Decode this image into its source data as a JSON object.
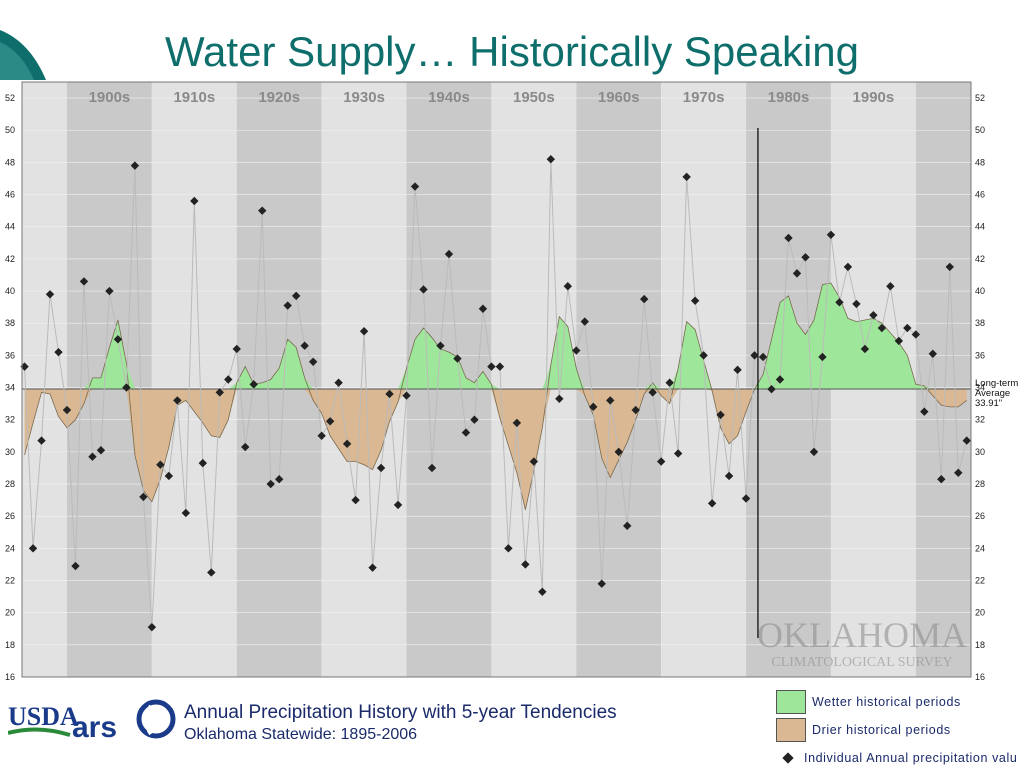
{
  "slide": {
    "title": "Water Supply… Historically Speaking"
  },
  "footer": {
    "title": "Annual Precipitation History with 5-year Tendencies",
    "subtitle": "Oklahoma Statewide: 1895-2006",
    "usda_logo_text": "USDA",
    "ars_logo_text": "ars"
  },
  "watermark": {
    "line1": "OKLAHOMA",
    "line2": "CLIMATOLOGICAL SURVEY"
  },
  "legend": {
    "wetter": "Wetter historical periods",
    "drier": "Drier historical periods",
    "points": "Individual Annual precipitation valu"
  },
  "colors": {
    "title": "#0e6e6b",
    "wet": "#9ee69a",
    "dry": "#d9b893",
    "band_dark": "#c9c9c9",
    "band_light": "#e2e2e2"
  },
  "chart_data": {
    "type": "area",
    "decades": [
      "1900s",
      "1910s",
      "1920s",
      "1930s",
      "1940s",
      "1950s",
      "1960s",
      "1970s",
      "1980s",
      "1990s"
    ],
    "ylim": [
      16,
      53
    ],
    "yticks": [
      16,
      18,
      20,
      22,
      24,
      26,
      28,
      30,
      32,
      34,
      36,
      38,
      40,
      42,
      44,
      46,
      48,
      50,
      52
    ],
    "xlim": [
      1894.7,
      2006.5
    ],
    "average_label": [
      "Long-term",
      "Average",
      "33.91\""
    ],
    "average": 33.91,
    "vertical_marker_year": 1981.4,
    "series": [
      {
        "name": "Individual Annual precipitation values",
        "x": [
          1895,
          1896,
          1897,
          1898,
          1899,
          1900,
          1901,
          1902,
          1903,
          1904,
          1905,
          1906,
          1907,
          1908,
          1909,
          1910,
          1911,
          1912,
          1913,
          1914,
          1915,
          1916,
          1917,
          1918,
          1919,
          1920,
          1921,
          1922,
          1923,
          1924,
          1925,
          1926,
          1927,
          1928,
          1929,
          1930,
          1931,
          1932,
          1933,
          1934,
          1935,
          1936,
          1937,
          1938,
          1939,
          1940,
          1941,
          1942,
          1943,
          1944,
          1945,
          1946,
          1947,
          1948,
          1949,
          1950,
          1951,
          1952,
          1953,
          1954,
          1955,
          1956,
          1957,
          1958,
          1959,
          1960,
          1961,
          1962,
          1963,
          1964,
          1965,
          1966,
          1967,
          1968,
          1969,
          1970,
          1971,
          1972,
          1973,
          1974,
          1975,
          1976,
          1977,
          1978,
          1979,
          1980,
          1981,
          1982,
          1983,
          1984,
          1985,
          1986,
          1987,
          1988,
          1989,
          1990,
          1991,
          1992,
          1993,
          1994,
          1995,
          1996,
          1997,
          1998,
          1999,
          2000,
          2001,
          2002,
          2003,
          2004,
          2005,
          2006
        ],
        "y": [
          35.3,
          24.0,
          30.7,
          39.8,
          36.2,
          32.6,
          22.9,
          40.6,
          29.7,
          30.1,
          40.0,
          37.0,
          34.0,
          47.8,
          27.2,
          19.1,
          29.2,
          28.5,
          33.2,
          26.2,
          45.6,
          29.3,
          22.5,
          33.7,
          34.5,
          36.4,
          30.3,
          34.2,
          45.0,
          28.0,
          28.3,
          39.1,
          39.7,
          36.6,
          35.6,
          31.0,
          31.9,
          34.3,
          30.5,
          27.0,
          37.5,
          22.8,
          29.0,
          33.6,
          26.7,
          33.5,
          46.5,
          40.1,
          29.0,
          36.6,
          42.3,
          35.8,
          31.2,
          32.0,
          38.9,
          35.3,
          35.3,
          24.0,
          31.8,
          23.0,
          29.4,
          21.3,
          48.2,
          33.3,
          40.3,
          36.3,
          38.1,
          32.8,
          21.8,
          33.2,
          30.0,
          25.4,
          32.6,
          39.5,
          33.7,
          29.4,
          34.3,
          29.9,
          47.1,
          39.4,
          36.0,
          26.8,
          32.3,
          28.5,
          35.1,
          27.1,
          36.0,
          35.9,
          33.9,
          34.5,
          43.3,
          41.1,
          42.1,
          30.0,
          35.9,
          43.5,
          39.3,
          41.5,
          39.2,
          36.4,
          38.5,
          37.7,
          40.3,
          36.9,
          37.7,
          37.3,
          32.5,
          36.1,
          28.3,
          41.5,
          28.7,
          30.7
        ]
      },
      {
        "name": "5-year Tendencies",
        "x": [
          1895,
          1896,
          1897,
          1898,
          1899,
          1900,
          1901,
          1902,
          1903,
          1904,
          1905,
          1906,
          1907,
          1908,
          1909,
          1910,
          1911,
          1912,
          1913,
          1914,
          1915,
          1916,
          1917,
          1918,
          1919,
          1920,
          1921,
          1922,
          1923,
          1924,
          1925,
          1926,
          1927,
          1928,
          1929,
          1930,
          1931,
          1932,
          1933,
          1934,
          1935,
          1936,
          1937,
          1938,
          1939,
          1940,
          1941,
          1942,
          1943,
          1944,
          1945,
          1946,
          1947,
          1948,
          1949,
          1950,
          1951,
          1952,
          1953,
          1954,
          1955,
          1956,
          1957,
          1958,
          1959,
          1960,
          1961,
          1962,
          1963,
          1964,
          1965,
          1966,
          1967,
          1968,
          1969,
          1970,
          1971,
          1972,
          1973,
          1974,
          1975,
          1976,
          1977,
          1978,
          1979,
          1980,
          1981,
          1982,
          1983,
          1984,
          1985,
          1986,
          1987,
          1988,
          1989,
          1990,
          1991,
          1992,
          1993,
          1994,
          1995,
          1996,
          1997,
          1998,
          1999,
          2000,
          2001,
          2002,
          2003,
          2004,
          2005,
          2006
        ],
        "y": [
          29.8,
          31.8,
          33.7,
          33.6,
          32.2,
          31.5,
          32.0,
          33.0,
          34.6,
          34.6,
          36.5,
          38.2,
          35.5,
          29.8,
          27.6,
          26.9,
          28.3,
          30.3,
          32.9,
          33.2,
          32.5,
          31.8,
          31.0,
          30.9,
          32.0,
          34.3,
          35.3,
          34.2,
          34.3,
          34.5,
          35.2,
          37.0,
          36.5,
          34.6,
          33.2,
          32.4,
          31.0,
          30.2,
          29.4,
          29.4,
          29.2,
          28.9,
          30.1,
          31.9,
          33.1,
          35.2,
          37.0,
          37.7,
          37.1,
          36.4,
          36.2,
          35.9,
          34.6,
          34.3,
          35.0,
          34.2,
          32.1,
          30.4,
          28.7,
          26.4,
          28.8,
          31.5,
          35.4,
          38.4,
          37.8,
          35.2,
          33.5,
          32.3,
          29.6,
          28.4,
          29.5,
          30.6,
          32.0,
          33.6,
          34.3,
          33.5,
          33.0,
          35.2,
          38.1,
          37.6,
          35.7,
          33.8,
          31.5,
          30.5,
          31.0,
          32.5,
          33.9,
          34.8,
          37.0,
          39.3,
          39.7,
          38.0,
          37.3,
          38.2,
          40.4,
          40.5,
          39.6,
          38.3,
          38.1,
          38.2,
          38.3,
          38.0,
          37.4,
          36.8,
          36.0,
          34.2,
          34.1,
          33.5,
          32.9,
          32.8,
          32.8,
          33.2
        ]
      }
    ]
  }
}
